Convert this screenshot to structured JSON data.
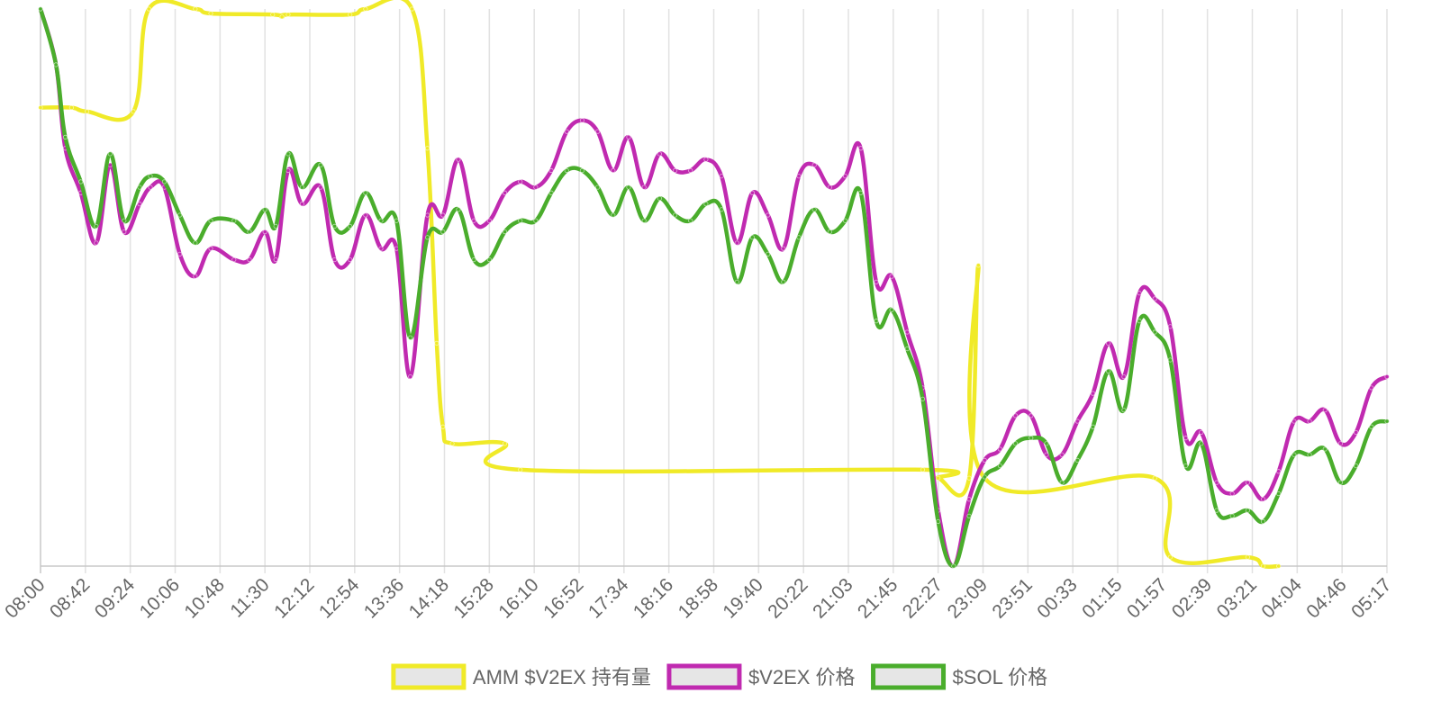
{
  "chart_data": {
    "type": "line",
    "title": "",
    "xlabel": "",
    "ylabel": "",
    "grid": "vertical",
    "legend_position": "bottom",
    "ylim": [
      0,
      100
    ],
    "x_labels": [
      "08:00",
      "08:42",
      "09:24",
      "10:06",
      "10:48",
      "11:30",
      "12:12",
      "12:54",
      "13:36",
      "14:18",
      "15:28",
      "16:10",
      "16:52",
      "17:34",
      "18:16",
      "18:58",
      "19:40",
      "20:22",
      "21:03",
      "21:45",
      "22:27",
      "23:09",
      "23:51",
      "00:33",
      "01:15",
      "01:57",
      "02:39",
      "03:21",
      "04:04",
      "04:46",
      "05:17"
    ],
    "series": [
      {
        "name": "AMM $V2EX 持有量",
        "color": "#f0ea28",
        "points": [
          [
            0,
            82.3
          ],
          [
            2,
            82.3
          ],
          [
            3,
            81.6
          ],
          [
            6,
            81.6
          ],
          [
            7,
            100
          ],
          [
            10,
            100
          ],
          [
            11,
            99.2
          ],
          [
            15,
            99
          ],
          [
            15.6,
            98.6
          ],
          [
            16,
            99
          ],
          [
            20,
            99
          ],
          [
            21,
            100
          ],
          [
            24,
            100
          ],
          [
            25,
            75
          ],
          [
            25.6,
            40
          ],
          [
            26,
            25
          ],
          [
            26.6,
            22
          ],
          [
            30,
            22
          ],
          [
            31,
            17.3
          ],
          [
            57,
            17.3
          ],
          [
            58,
            15.8
          ],
          [
            60,
            15.8
          ],
          [
            60.6,
            54
          ],
          [
            61,
            15.8
          ],
          [
            72,
            15.8
          ],
          [
            73,
            1.6
          ],
          [
            78,
            1.6
          ],
          [
            79,
            0
          ],
          [
            80,
            0
          ]
        ]
      },
      {
        "name": "$V2EX 价格",
        "color": "#c02ab0",
        "points": [
          [
            0,
            100
          ],
          [
            1,
            90
          ],
          [
            1.6,
            75
          ],
          [
            2.6,
            67
          ],
          [
            3.6,
            58
          ],
          [
            4.5,
            72
          ],
          [
            5.4,
            60
          ],
          [
            6.4,
            65
          ],
          [
            7.1,
            68
          ],
          [
            8,
            68
          ],
          [
            9,
            56
          ],
          [
            10,
            52
          ],
          [
            11,
            57
          ],
          [
            12.5,
            55
          ],
          [
            13.5,
            55
          ],
          [
            14.5,
            60
          ],
          [
            15.2,
            55
          ],
          [
            16,
            71
          ],
          [
            16.9,
            65
          ],
          [
            18.1,
            68
          ],
          [
            19,
            55
          ],
          [
            20,
            55
          ],
          [
            21,
            63
          ],
          [
            22,
            57
          ],
          [
            23,
            57
          ],
          [
            23.9,
            34
          ],
          [
            25,
            63
          ],
          [
            26,
            63
          ],
          [
            27,
            73
          ],
          [
            28,
            62
          ],
          [
            29,
            62
          ],
          [
            30,
            67
          ],
          [
            31,
            69
          ],
          [
            32,
            68
          ],
          [
            33,
            71
          ],
          [
            34,
            78
          ],
          [
            35,
            80
          ],
          [
            36,
            78
          ],
          [
            37,
            71
          ],
          [
            38,
            77
          ],
          [
            39,
            68
          ],
          [
            40,
            74
          ],
          [
            41,
            71
          ],
          [
            42,
            71
          ],
          [
            43,
            73
          ],
          [
            44,
            70
          ],
          [
            45,
            58
          ],
          [
            46,
            67
          ],
          [
            47,
            63
          ],
          [
            48,
            57
          ],
          [
            49,
            70
          ],
          [
            50,
            72
          ],
          [
            51,
            68
          ],
          [
            52,
            70
          ],
          [
            53,
            75
          ],
          [
            54,
            51
          ],
          [
            55,
            52
          ],
          [
            56,
            42
          ],
          [
            57,
            32
          ],
          [
            58,
            10
          ],
          [
            59,
            0
          ],
          [
            60,
            12
          ],
          [
            61,
            19
          ],
          [
            62,
            21
          ],
          [
            63,
            27
          ],
          [
            64,
            27
          ],
          [
            65,
            20
          ],
          [
            66,
            20
          ],
          [
            67,
            26
          ],
          [
            68,
            31
          ],
          [
            69,
            40
          ],
          [
            70,
            34
          ],
          [
            71,
            49
          ],
          [
            72,
            48
          ],
          [
            73,
            43
          ],
          [
            74,
            23
          ],
          [
            75,
            24
          ],
          [
            76,
            15
          ],
          [
            77,
            13
          ],
          [
            78,
            15
          ],
          [
            79,
            12
          ],
          [
            80,
            17
          ],
          [
            81,
            26
          ],
          [
            82,
            26
          ],
          [
            83,
            28
          ],
          [
            84,
            22
          ],
          [
            85,
            24
          ],
          [
            86,
            32
          ],
          [
            87,
            34
          ]
        ]
      },
      {
        "name": "$SOL 价格",
        "color": "#4aad2c",
        "points": [
          [
            0,
            100
          ],
          [
            1,
            90
          ],
          [
            1.6,
            77
          ],
          [
            2.6,
            69
          ],
          [
            3.6,
            61
          ],
          [
            4.5,
            74
          ],
          [
            5.4,
            62
          ],
          [
            6.4,
            68
          ],
          [
            7.1,
            70
          ],
          [
            8,
            69
          ],
          [
            9,
            63
          ],
          [
            10,
            58
          ],
          [
            11,
            62
          ],
          [
            12.5,
            62
          ],
          [
            13.5,
            60
          ],
          [
            14.5,
            64
          ],
          [
            15.2,
            61
          ],
          [
            16,
            74
          ],
          [
            16.9,
            68
          ],
          [
            18.1,
            72
          ],
          [
            19,
            61
          ],
          [
            20,
            61
          ],
          [
            21,
            67
          ],
          [
            22,
            62
          ],
          [
            23,
            62
          ],
          [
            23.9,
            41
          ],
          [
            25,
            59
          ],
          [
            26,
            60
          ],
          [
            27,
            64
          ],
          [
            28,
            55
          ],
          [
            29,
            55
          ],
          [
            30,
            60
          ],
          [
            31,
            62
          ],
          [
            32,
            62
          ],
          [
            33,
            67
          ],
          [
            34,
            71
          ],
          [
            35,
            71
          ],
          [
            36,
            68
          ],
          [
            37,
            63
          ],
          [
            38,
            68
          ],
          [
            39,
            62
          ],
          [
            40,
            66
          ],
          [
            41,
            63
          ],
          [
            42,
            62
          ],
          [
            43,
            65
          ],
          [
            44,
            64
          ],
          [
            45,
            51
          ],
          [
            46,
            59
          ],
          [
            47,
            56
          ],
          [
            48,
            51
          ],
          [
            49,
            59
          ],
          [
            50,
            64
          ],
          [
            51,
            60
          ],
          [
            52,
            62
          ],
          [
            53,
            67
          ],
          [
            54,
            44
          ],
          [
            55,
            46
          ],
          [
            56,
            39
          ],
          [
            57,
            30
          ],
          [
            58,
            8
          ],
          [
            59,
            0
          ],
          [
            60,
            9
          ],
          [
            61,
            16
          ],
          [
            62,
            18
          ],
          [
            63,
            22
          ],
          [
            64,
            23
          ],
          [
            65,
            22
          ],
          [
            66,
            15
          ],
          [
            67,
            19
          ],
          [
            68,
            25
          ],
          [
            69,
            35
          ],
          [
            70,
            28
          ],
          [
            71,
            44
          ],
          [
            72,
            42
          ],
          [
            73,
            37
          ],
          [
            74,
            18
          ],
          [
            75,
            22
          ],
          [
            76,
            10
          ],
          [
            77,
            9
          ],
          [
            78,
            10
          ],
          [
            79,
            8
          ],
          [
            80,
            13
          ],
          [
            81,
            20
          ],
          [
            82,
            20
          ],
          [
            83,
            21
          ],
          [
            84,
            15
          ],
          [
            85,
            18
          ],
          [
            86,
            25
          ],
          [
            87,
            26
          ]
        ]
      }
    ]
  }
}
